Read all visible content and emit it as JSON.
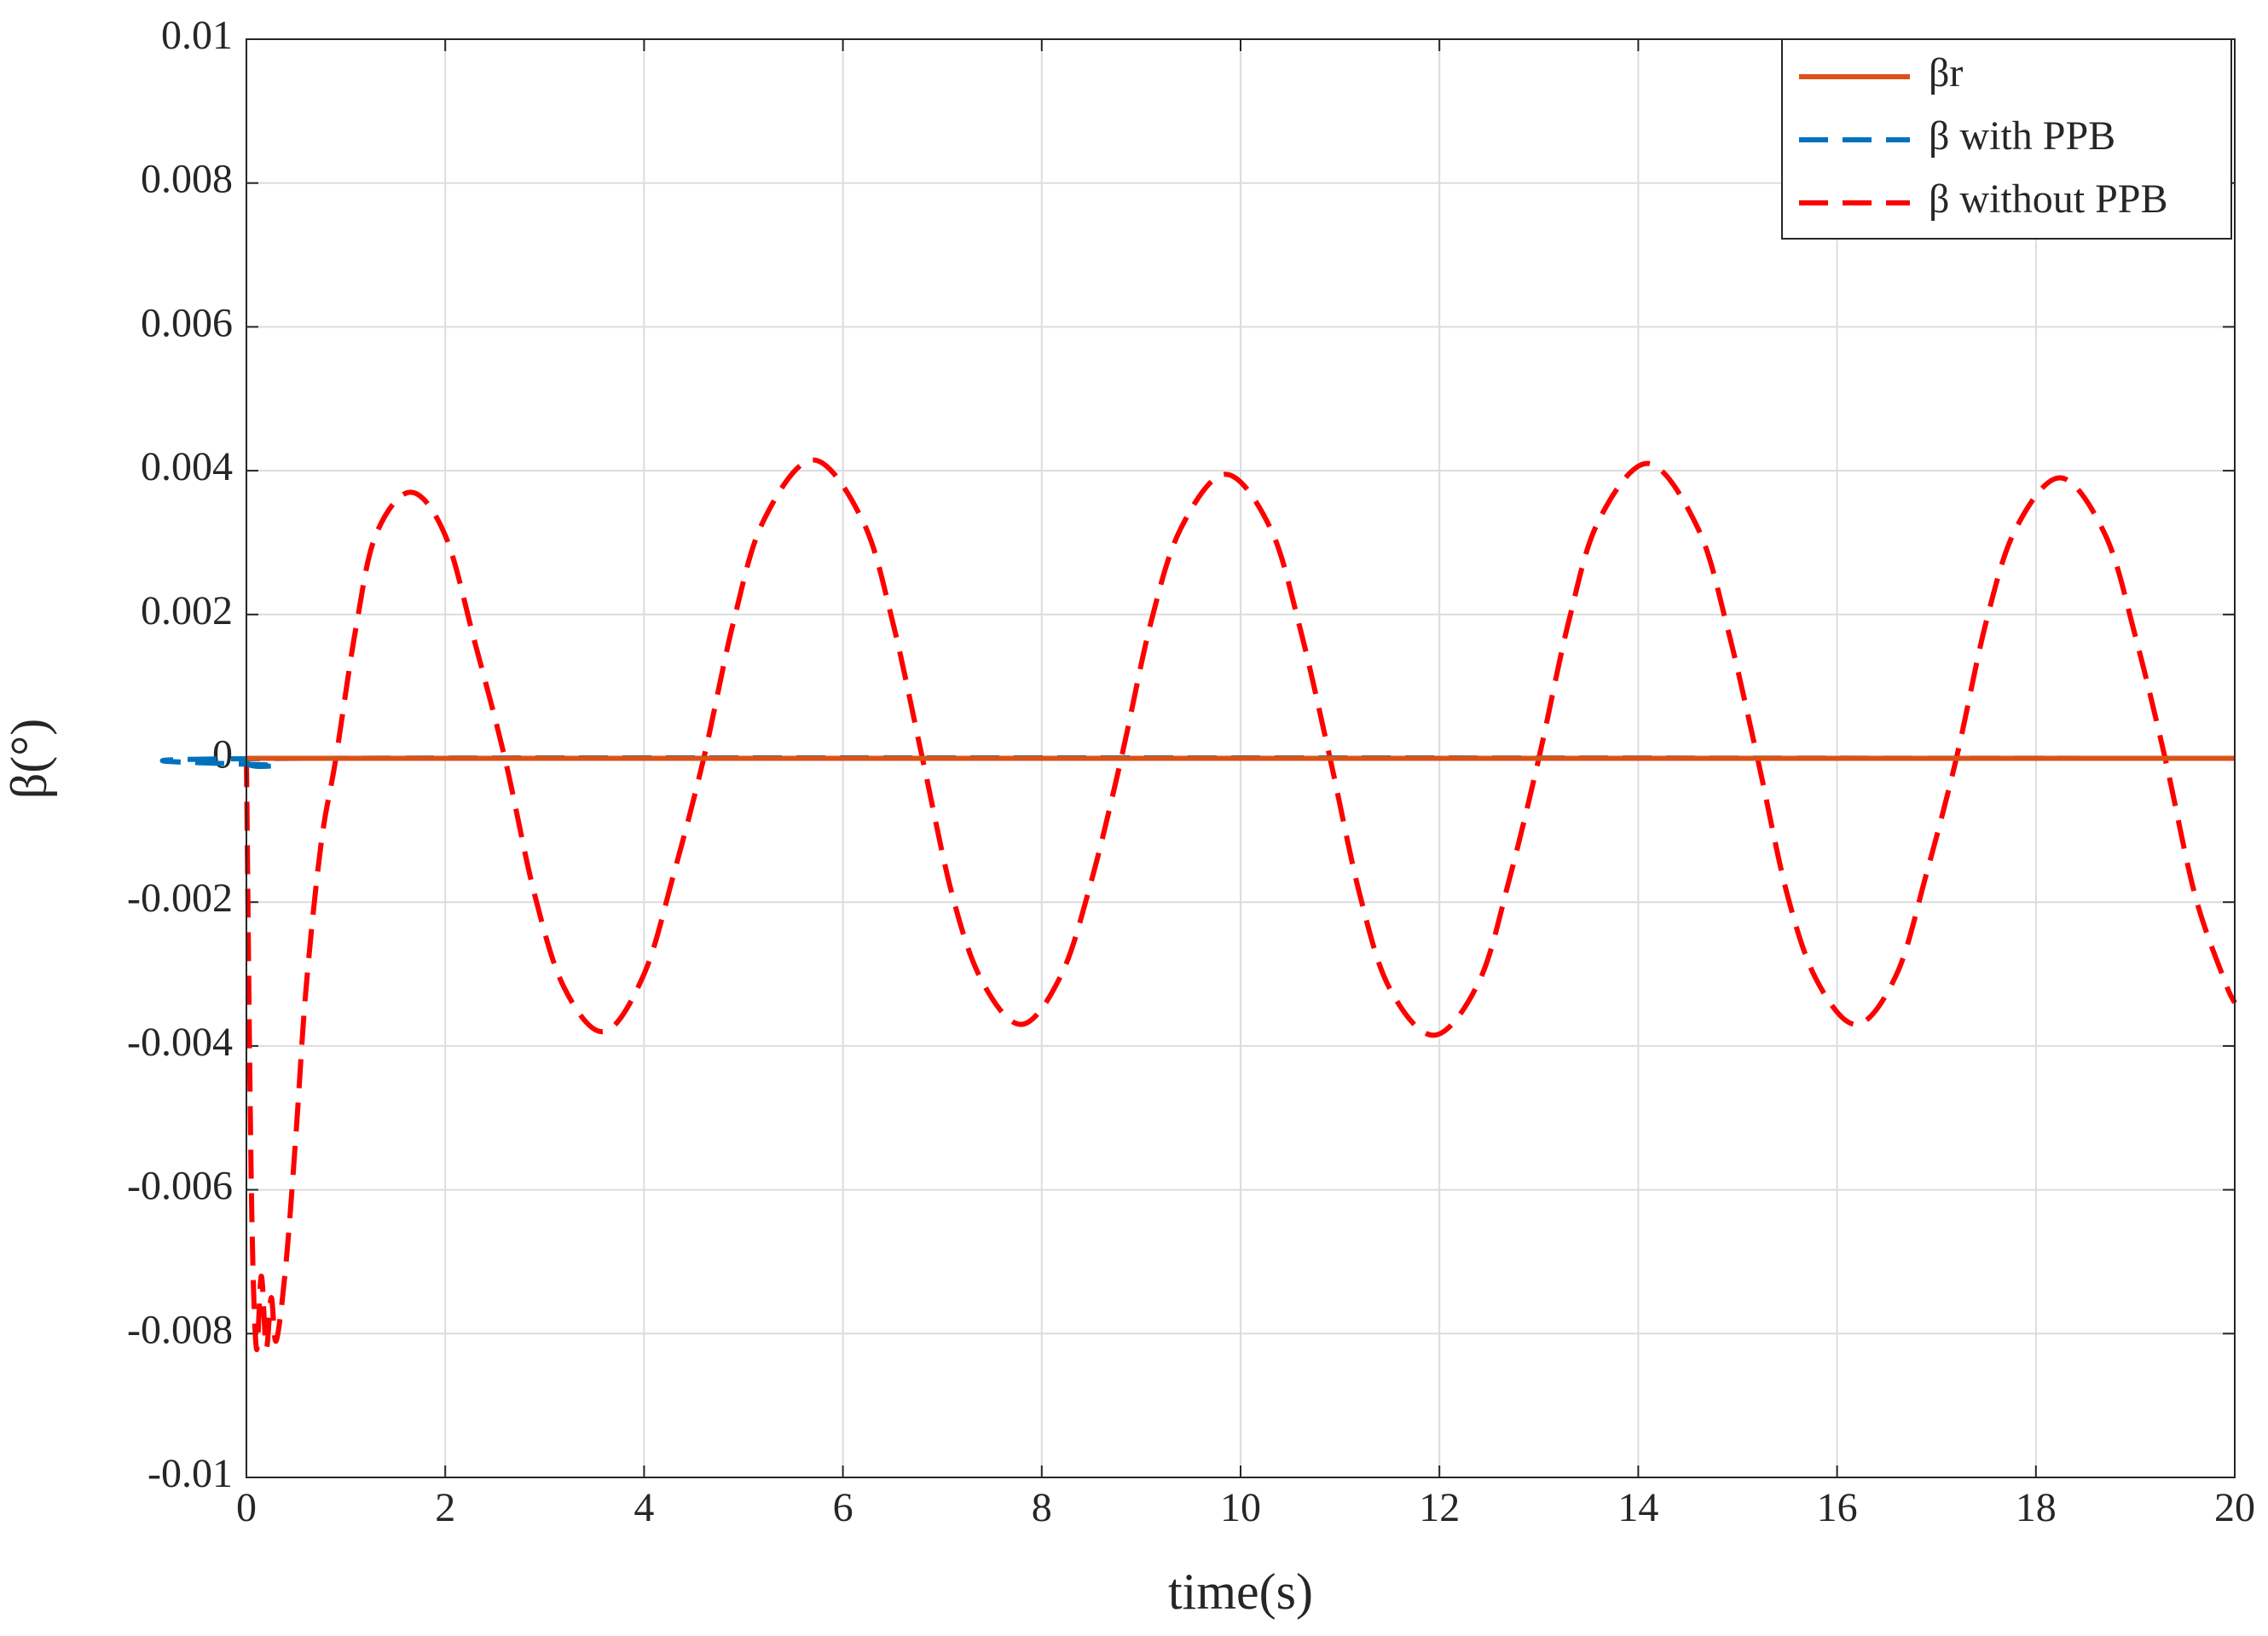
{
  "chart_data": {
    "type": "line",
    "xlabel": "time(s)",
    "ylabel": "β(°)",
    "xlim": [
      0,
      20
    ],
    "xticks": [
      0,
      2,
      4,
      6,
      8,
      10,
      12,
      14,
      16,
      18,
      20
    ],
    "ylim": [
      -0.01,
      0.01
    ],
    "yticks": [
      -0.01,
      -0.008,
      -0.006,
      -0.004,
      -0.002,
      0,
      0.002,
      0.004,
      0.006,
      0.008,
      0.01
    ],
    "grid": true,
    "legend": "upper right",
    "series": [
      {
        "name": "βr",
        "color": "#d95319",
        "style": "solid",
        "x": [
          0,
          20
        ],
        "values": [
          0,
          0
        ]
      },
      {
        "name": "β with PPB",
        "color": "#0072bd",
        "style": "dashed",
        "x": [
          0,
          0.05,
          0.3,
          0.7,
          20
        ],
        "values": [
          0,
          -0.0001,
          -0.0001,
          0,
          0
        ]
      },
      {
        "name": "β without PPB",
        "color": "#ff0000",
        "style": "dashed",
        "x": [
          0,
          0.05,
          0.1,
          0.15,
          0.2,
          0.25,
          0.3,
          0.4,
          0.5,
          0.6,
          0.75,
          0.9,
          1.1,
          1.3,
          1.65,
          2.0,
          2.3,
          2.6,
          2.9,
          3.2,
          3.6,
          4.0,
          4.3,
          4.6,
          4.9,
          5.2,
          5.7,
          6.2,
          6.5,
          6.8,
          7.1,
          7.4,
          7.8,
          8.2,
          8.5,
          8.8,
          9.1,
          9.4,
          9.85,
          10.3,
          10.6,
          10.9,
          11.2,
          11.5,
          11.95,
          12.4,
          12.7,
          13.0,
          13.3,
          13.6,
          14.1,
          14.6,
          14.9,
          15.2,
          15.5,
          15.8,
          16.2,
          16.6,
          16.9,
          17.2,
          17.5,
          17.8,
          18.25,
          18.7,
          19.0,
          19.3,
          19.6,
          19.9,
          20
        ],
        "values": [
          0,
          -0.006,
          -0.0082,
          -0.0072,
          -0.0082,
          -0.0075,
          -0.0081,
          -0.007,
          -0.0052,
          -0.0032,
          -0.0012,
          0,
          0.0018,
          0.0031,
          0.0037,
          0.0031,
          0.0016,
          0,
          -0.0019,
          -0.0032,
          -0.0038,
          -0.003,
          -0.0016,
          0,
          0.0019,
          0.0033,
          0.00415,
          0.0033,
          0.0019,
          0,
          -0.0019,
          -0.0031,
          -0.0037,
          -0.003,
          -0.0017,
          0,
          0.0019,
          0.0032,
          0.00395,
          0.0032,
          0.0018,
          0,
          -0.0019,
          -0.0032,
          -0.00385,
          -0.0031,
          -0.0017,
          0,
          0.0019,
          0.0033,
          0.0041,
          0.0032,
          0.0018,
          0,
          -0.0019,
          -0.0031,
          -0.0037,
          -0.003,
          -0.0016,
          0,
          0.0019,
          0.0032,
          0.0039,
          0.0031,
          0.0017,
          0,
          -0.0019,
          -0.0031,
          -0.0034
        ]
      }
    ]
  }
}
